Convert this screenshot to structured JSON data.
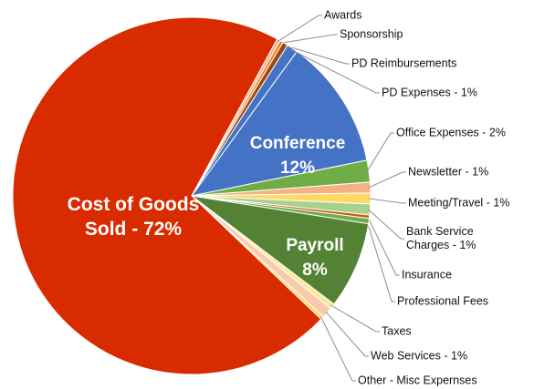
{
  "chart_data": {
    "type": "pie",
    "categories": [
      "Conference 12%",
      "Office Expenses - 2%",
      "Newsletter - 1%",
      "Meeting/Travel - 1%",
      "Bank Service Charges - 1%",
      "Insurance",
      "Professional Fees",
      "Payroll 8%",
      "Taxes",
      "Web Services - 1%",
      "Other - Misc Expernses",
      "Cost of Goods Sold - 72%",
      "Awards",
      "Sponsorship",
      "PD Reimbursements",
      "PD Expenses - 1%"
    ],
    "values": [
      12,
      2,
      1,
      1,
      1,
      0.3,
      0.5,
      8,
      0.5,
      1,
      0.3,
      72,
      0.3,
      0.3,
      0.5,
      1
    ],
    "colors": [
      "#4472c4",
      "#70ad47",
      "#f4b183",
      "#ffd966",
      "#a9d18e",
      "#c55a11",
      "#70ad47",
      "#548235",
      "#ffe699",
      "#f8cbad",
      "#ffd966",
      "#d92b00",
      "#f4b183",
      "#ed7d31",
      "#9e480e",
      "#4472c4"
    ]
  }
}
